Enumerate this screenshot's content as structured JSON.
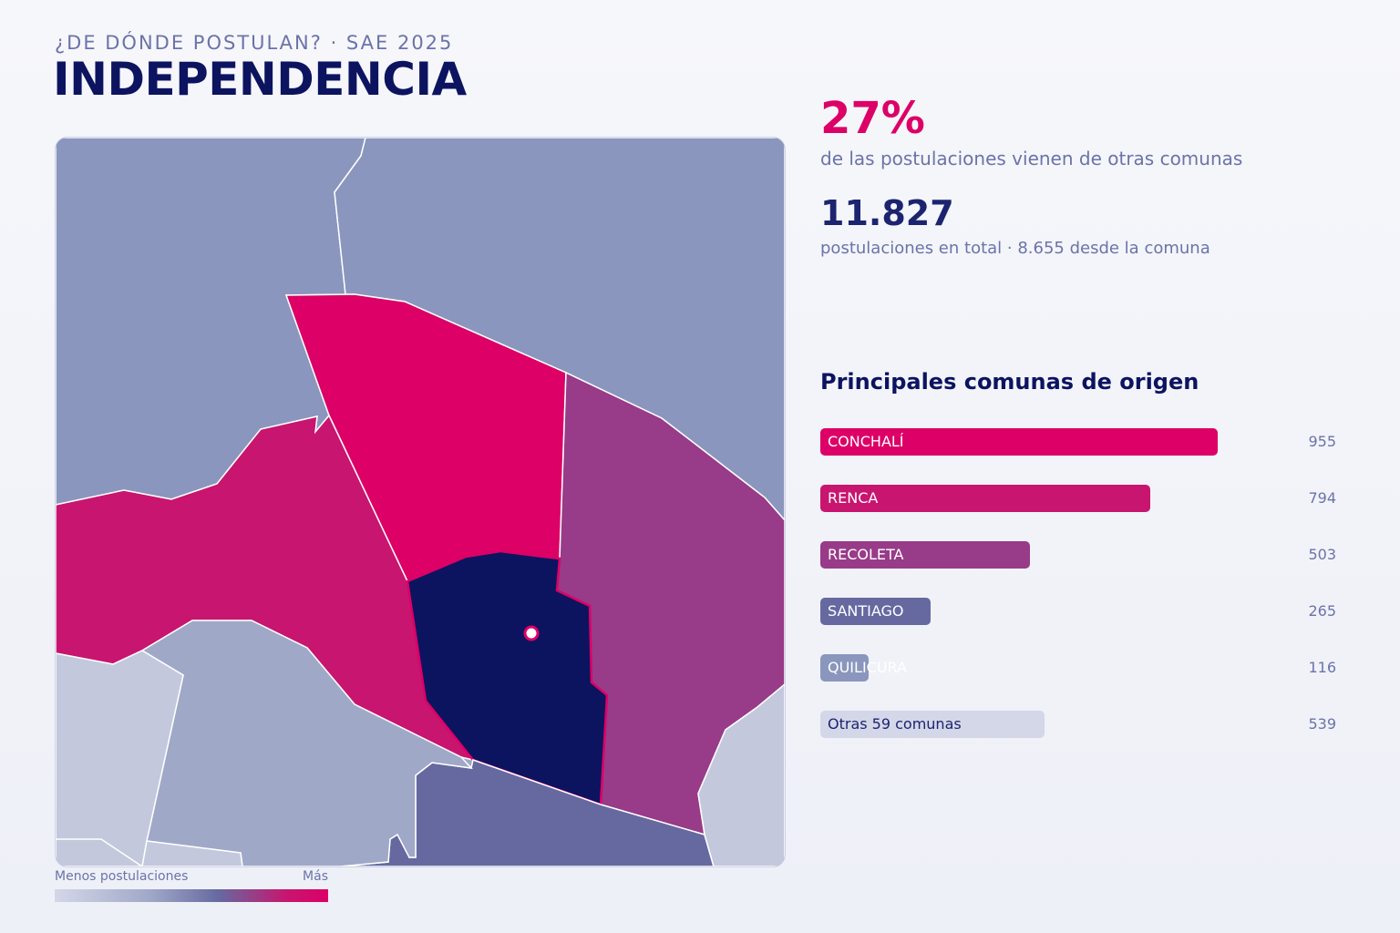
{
  "header": {
    "subtitle": "¿DE DÓNDE POSTULAN? · SAE 2025",
    "title": "INDEPENDENCIA"
  },
  "stats": {
    "pct_value": "27%",
    "pct_label": "de las postulaciones vienen de otras comunas",
    "total_value": "11.827",
    "total_label": "postulaciones en total · 8.655 desde la comuna"
  },
  "origins": {
    "title": "Principales comunas de origen",
    "max": 955,
    "items": [
      {
        "label": "CONCHALÍ",
        "value": 955,
        "color": "#dc0067"
      },
      {
        "label": "RENCA",
        "value": 794,
        "color": "#c8156f"
      },
      {
        "label": "RECOLETA",
        "value": 503,
        "color": "#983b88"
      },
      {
        "label": "SANTIAGO",
        "value": 265,
        "color": "#6669a0"
      },
      {
        "label": "QUILICURA",
        "value": 116,
        "color": "#8a96bd"
      },
      {
        "label": "Otras 59 comunas",
        "value": 539,
        "color": "#d4d7e8"
      }
    ]
  },
  "legend": {
    "low_label": "Menos postulaciones",
    "high_label": "Más"
  },
  "map": {
    "colors": {
      "north": "#8a96bd",
      "conchali": "#dc0067",
      "renca": "#c8156f",
      "recoleta": "#983b88",
      "independencia": "#0c1460",
      "santiago": "#6669a0",
      "light": "#a0a8c8",
      "lightest": "#c3c8dd"
    }
  }
}
